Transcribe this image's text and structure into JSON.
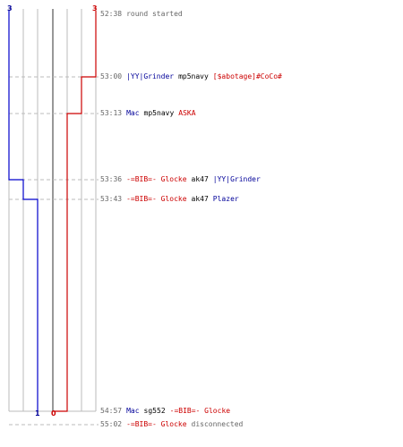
{
  "team_counts": {
    "blue_start": "3",
    "red_start": "3",
    "blue_end": "1",
    "red_end": "0"
  },
  "colors": {
    "blue_team": "#0000cc",
    "red_team": "#cc0000",
    "grid": "#bbbbbb",
    "dashed_leader": "#bbbbbb",
    "timestamp": "#666666"
  },
  "events": [
    {
      "time": "52:38",
      "parts": [
        {
          "text": "round started",
          "color": "gray"
        }
      ]
    },
    {
      "time": "53:00",
      "parts": [
        {
          "text": "|YY|Grinder",
          "color": "blue"
        },
        {
          "text": "mp5navy",
          "color": "black"
        },
        {
          "text": "[$abotage]#CoCo#",
          "color": "red"
        }
      ]
    },
    {
      "time": "53:13",
      "parts": [
        {
          "text": "Mac",
          "color": "blue"
        },
        {
          "text": "mp5navy",
          "color": "black"
        },
        {
          "text": "ASKA",
          "color": "red"
        }
      ]
    },
    {
      "time": "53:36",
      "parts": [
        {
          "text": "-=BIB=- Glocke",
          "color": "red"
        },
        {
          "text": "ak47",
          "color": "black"
        },
        {
          "text": "|YY|Grinder",
          "color": "blue"
        }
      ]
    },
    {
      "time": "53:43",
      "parts": [
        {
          "text": "-=BIB=- Glocke",
          "color": "red"
        },
        {
          "text": "ak47",
          "color": "black"
        },
        {
          "text": "Plazer",
          "color": "blue"
        }
      ]
    },
    {
      "time": "54:57",
      "parts": [
        {
          "text": "Mac",
          "color": "blue"
        },
        {
          "text": "sg552",
          "color": "black"
        },
        {
          "text": "-=BIB=- Glocke",
          "color": "red"
        }
      ]
    },
    {
      "time": "55:02",
      "parts": [
        {
          "text": "-=BIB=- Glocke",
          "color": "red"
        },
        {
          "text": "disconnected",
          "color": "gray"
        }
      ]
    }
  ]
}
